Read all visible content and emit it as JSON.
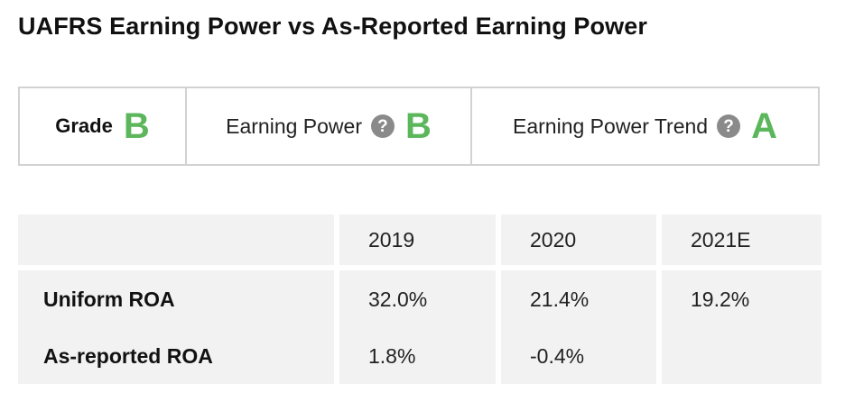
{
  "page": {
    "title": "UAFRS Earning Power vs As-Reported Earning Power"
  },
  "grades": {
    "grade_label": "Grade",
    "grade_value": "B",
    "earning_power_label": "Earning Power",
    "earning_power_value": "B",
    "earning_power_trend_label": "Earning Power Trend",
    "earning_power_trend_value": "A",
    "help_glyph": "?",
    "grade_color": "#5cb65c"
  },
  "table": {
    "columns": [
      "",
      "2019",
      "2020",
      "2021E"
    ],
    "rows": [
      {
        "label": "Uniform ROA",
        "values": [
          "32.0%",
          "21.4%",
          "19.2%"
        ]
      },
      {
        "label": "As-reported ROA",
        "values": [
          "1.8%",
          "-0.4%",
          ""
        ]
      }
    ]
  }
}
